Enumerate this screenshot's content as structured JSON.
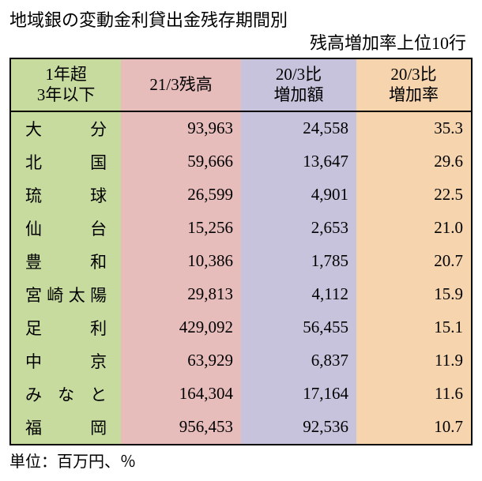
{
  "title": {
    "line1": "地域銀の変動金利貸出金残存期間別",
    "line2": "残高増加率上位10行"
  },
  "table": {
    "columns": [
      {
        "label_line1": "1年超",
        "label_line2": "3年以下",
        "bg": "#c7db9f",
        "width": "24%"
      },
      {
        "label_line1": "21/3残高",
        "label_line2": "",
        "bg": "#e7bdbc",
        "width": "26%"
      },
      {
        "label_line1": "20/3比",
        "label_line2": "増加額",
        "bg": "#c7c3dc",
        "width": "25%"
      },
      {
        "label_line1": "20/3比",
        "label_line2": "増加率",
        "bg": "#f5d4ae",
        "width": "25%"
      }
    ],
    "rows": [
      {
        "bank": "大分",
        "balance": "93,963",
        "increase": "24,558",
        "rate": "35.3"
      },
      {
        "bank": "北国",
        "balance": "59,666",
        "increase": "13,647",
        "rate": "29.6"
      },
      {
        "bank": "琉球",
        "balance": "26,599",
        "increase": "4,901",
        "rate": "22.5"
      },
      {
        "bank": "仙台",
        "balance": "15,256",
        "increase": "2,653",
        "rate": "21.0"
      },
      {
        "bank": "豊和",
        "balance": "10,386",
        "increase": "1,785",
        "rate": "20.7"
      },
      {
        "bank": "宮崎太陽",
        "balance": "29,813",
        "increase": "4,112",
        "rate": "15.9"
      },
      {
        "bank": "足利",
        "balance": "429,092",
        "increase": "56,455",
        "rate": "15.1"
      },
      {
        "bank": "中京",
        "balance": "63,929",
        "increase": "6,837",
        "rate": "11.9"
      },
      {
        "bank": "みなと",
        "balance": "164,304",
        "increase": "17,164",
        "rate": "11.6"
      },
      {
        "bank": "福岡",
        "balance": "956,453",
        "increase": "92,536",
        "rate": "10.7"
      }
    ]
  },
  "footnote": "単位：百万円、％",
  "colors": {
    "text": "#000000",
    "border": "#000000",
    "background": "#ffffff"
  }
}
